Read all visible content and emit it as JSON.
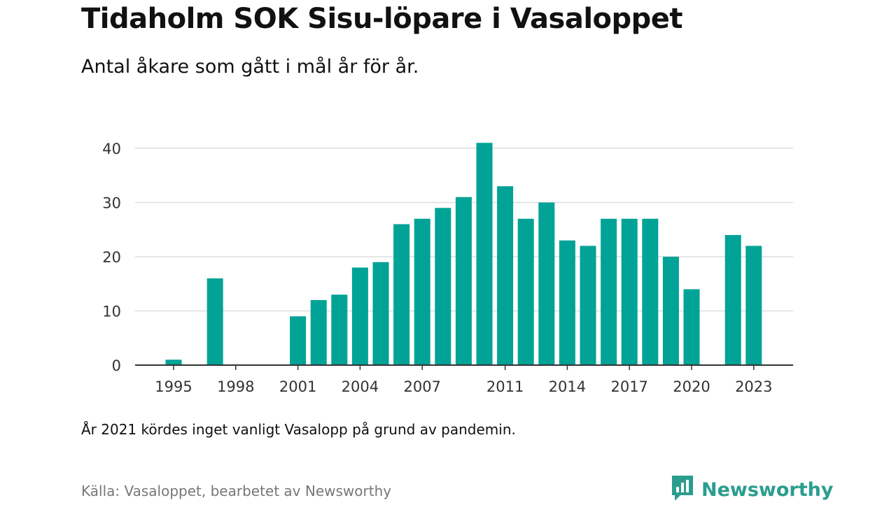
{
  "header": {
    "title": "Tidaholm SOK Sisu-löpare i Vasaloppet",
    "subtitle": "Antal åkare som gått i mål år för år."
  },
  "footer": {
    "note": "År 2021 kördes inget vanligt Vasalopp på grund av pandemin.",
    "source": "Källa: Vasaloppet, bearbetet av Newsworthy",
    "brand": "Newsworthy",
    "brand_icon": "newsworthy-logo-icon"
  },
  "colors": {
    "bar": "#00a396",
    "grid": "#dddddd",
    "axis": "#333333",
    "brand": "#2a9d8f"
  },
  "chart_data": {
    "type": "bar",
    "categories": [
      1995,
      1996,
      1997,
      1998,
      1999,
      2000,
      2001,
      2002,
      2003,
      2004,
      2005,
      2006,
      2007,
      2008,
      2009,
      2010,
      2011,
      2012,
      2013,
      2014,
      2015,
      2016,
      2017,
      2018,
      2019,
      2020,
      2021,
      2022,
      2023
    ],
    "values": [
      1,
      0,
      16,
      0,
      0,
      0,
      9,
      12,
      13,
      18,
      19,
      26,
      27,
      29,
      31,
      41,
      33,
      27,
      30,
      23,
      22,
      27,
      27,
      27,
      20,
      14,
      0,
      24,
      22
    ],
    "x_tick_labels": [
      "1995",
      "1998",
      "2001",
      "2004",
      "2007",
      "2011",
      "2014",
      "2017",
      "2020",
      "2023"
    ],
    "y_ticks": [
      0,
      10,
      20,
      30,
      40
    ],
    "ylim": [
      0,
      43
    ],
    "xlabel": "",
    "ylabel": "",
    "grid": true,
    "legend": "none"
  }
}
